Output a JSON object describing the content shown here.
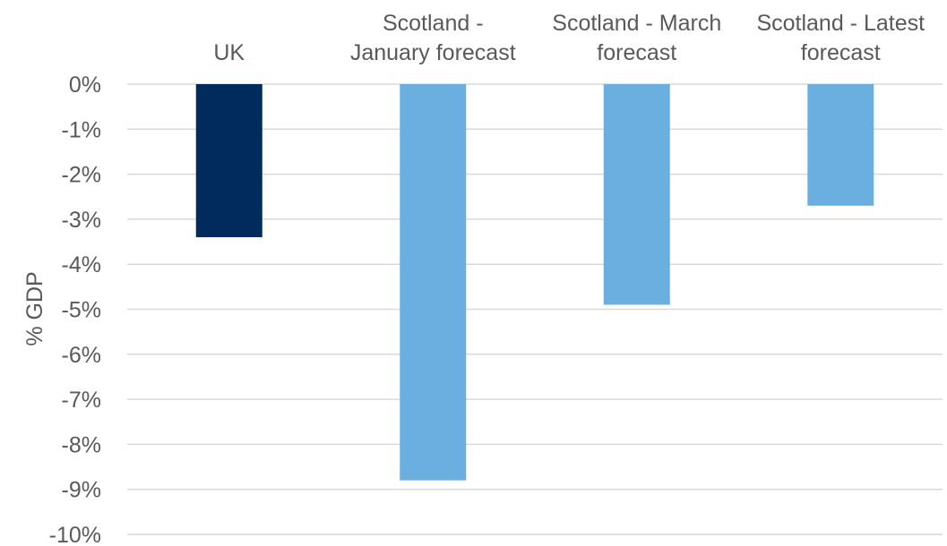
{
  "chart_data": {
    "type": "bar",
    "title": "",
    "xlabel": "",
    "ylabel": "% GDP",
    "categories": [
      [
        "UK"
      ],
      [
        "Scotland -",
        "January forecast"
      ],
      [
        "Scotland - March",
        "forecast"
      ],
      [
        "Scotland - Latest",
        "forecast"
      ]
    ],
    "values": [
      -3.4,
      -8.8,
      -4.9,
      -2.7
    ],
    "bar_colors": [
      "#002b5c",
      "#6aafe0",
      "#6aafe0",
      "#6aafe0"
    ],
    "ylim": [
      -10,
      0
    ],
    "yticks": [
      0,
      -1,
      -2,
      -3,
      -4,
      -5,
      -6,
      -7,
      -8,
      -9,
      -10
    ],
    "ytick_labels": [
      "0%",
      "-1%",
      "-2%",
      "-3%",
      "-4%",
      "-5%",
      "-6%",
      "-7%",
      "-8%",
      "-9%",
      "-10%"
    ],
    "grid": true,
    "gridline_color": "#d9d9d9",
    "text_color": "#595959",
    "legend": "none",
    "category_axis_position": "top"
  }
}
